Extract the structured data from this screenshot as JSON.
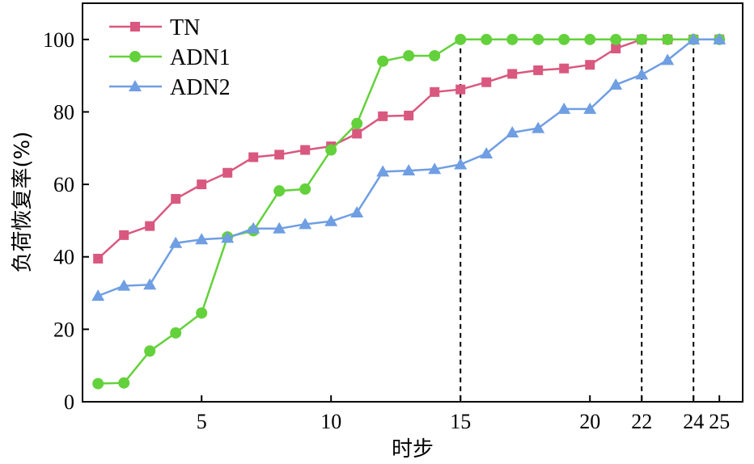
{
  "chart_data": {
    "type": "line",
    "xlabel": "时步",
    "ylabel": "负荷恢复率(%)",
    "xlim": [
      0.4,
      25.9
    ],
    "ylim": [
      0,
      110
    ],
    "x_ticks": [
      5,
      10,
      15,
      20,
      22,
      24,
      25
    ],
    "y_ticks": [
      0,
      20,
      40,
      60,
      80,
      100
    ],
    "grid": false,
    "legend_position": "top-left",
    "vlines": [
      15,
      22,
      24
    ],
    "x": [
      1,
      2,
      3,
      4,
      5,
      6,
      7,
      8,
      9,
      10,
      11,
      12,
      13,
      14,
      15,
      16,
      17,
      18,
      19,
      20,
      21,
      22,
      23,
      24,
      25
    ],
    "series": [
      {
        "name": "TN",
        "marker": "square",
        "color": "#d9587f",
        "values": [
          39.5,
          46,
          48.5,
          56,
          60,
          63.2,
          67.5,
          68.2,
          69.5,
          70.5,
          74,
          78.8,
          79,
          85.5,
          86.2,
          88.2,
          90.5,
          91.5,
          92,
          93,
          97.5,
          100,
          100,
          100,
          100
        ]
      },
      {
        "name": "ADN1",
        "marker": "circle",
        "color": "#63d13b",
        "values": [
          5,
          5.2,
          14,
          19,
          24.5,
          45.5,
          47.2,
          58.2,
          58.7,
          69.5,
          76.8,
          94,
          95.5,
          95.5,
          100,
          100,
          100,
          100,
          100,
          100,
          100,
          100,
          100,
          100,
          100
        ]
      },
      {
        "name": "ADN2",
        "marker": "triangle",
        "color": "#6f9ee3",
        "values": [
          29.2,
          32,
          32.3,
          43.8,
          44.8,
          45.2,
          47.8,
          47.8,
          49,
          49.8,
          52.2,
          63.5,
          63.8,
          64.2,
          65.5,
          68.5,
          74.3,
          75.5,
          80.8,
          80.8,
          87.5,
          90.3,
          94.3,
          100,
          100
        ]
      }
    ]
  }
}
